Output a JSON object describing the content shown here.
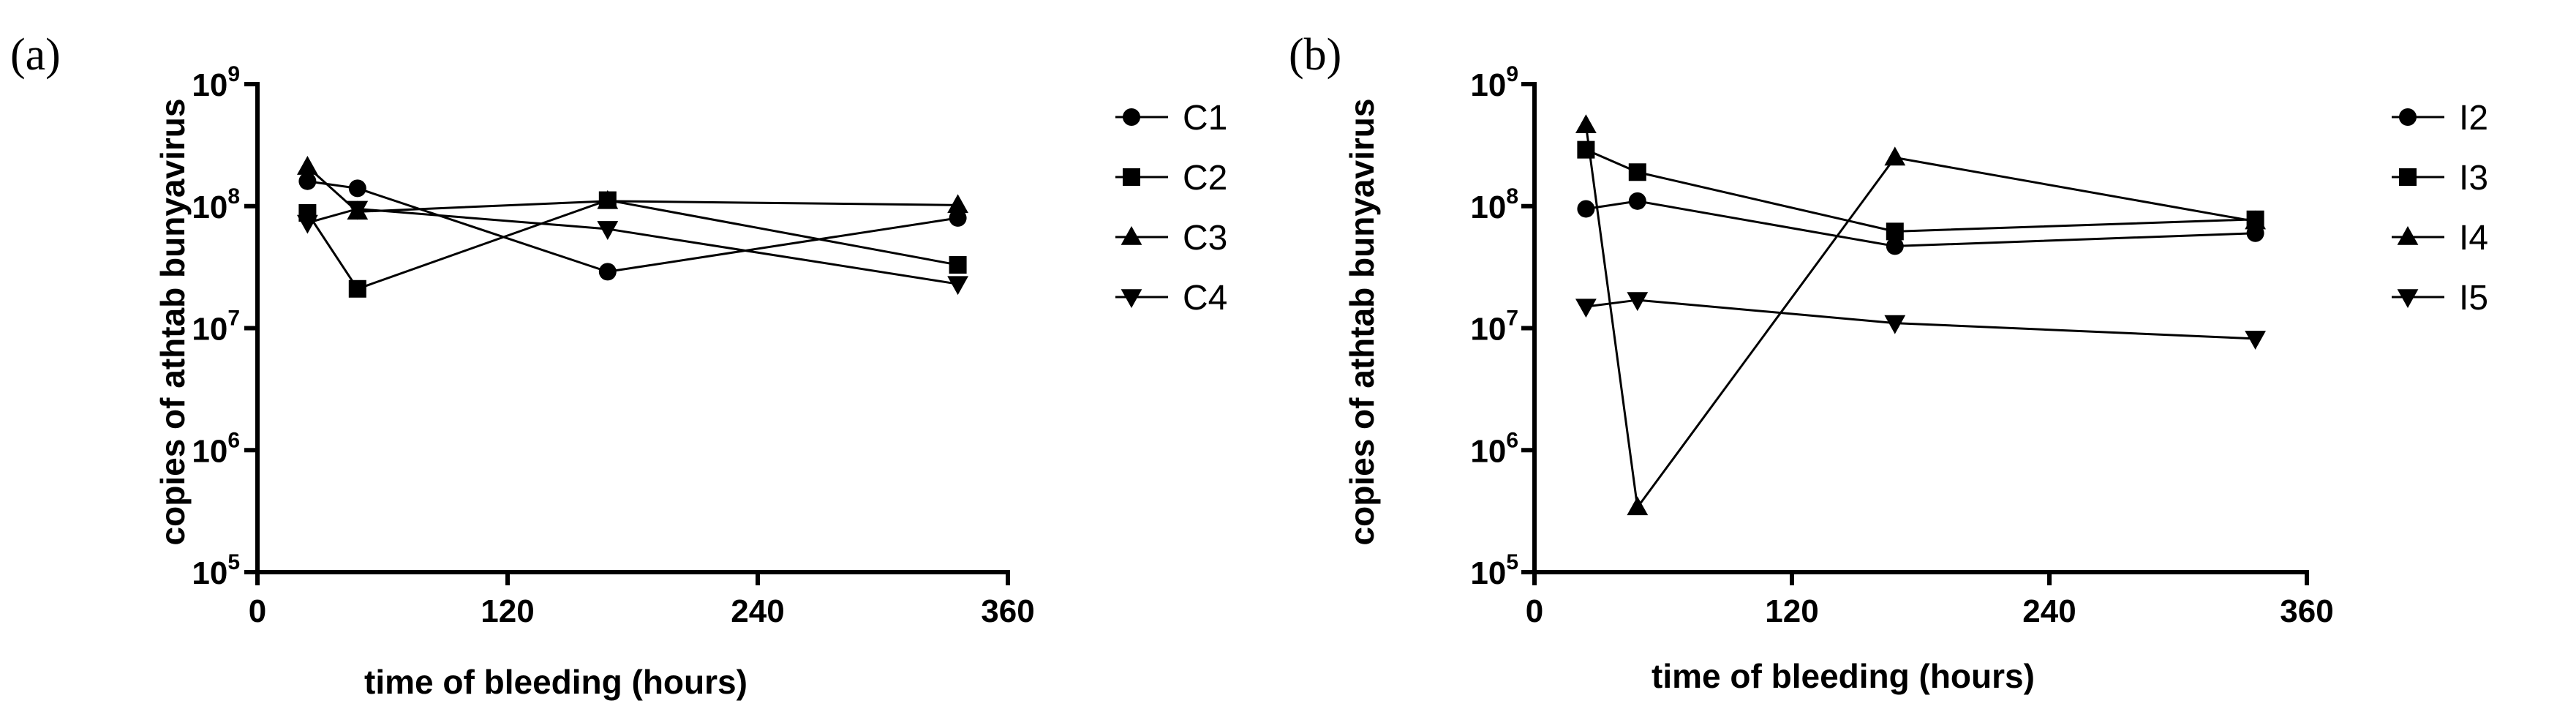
{
  "chart_data": [
    {
      "type": "line",
      "panel_label": "(a)",
      "xlabel": "time of bleeding (hours)",
      "ylabel": "copies of athtab bunyavirus",
      "xlim": [
        0,
        360
      ],
      "xticks": [
        "0",
        "120",
        "240",
        "360"
      ],
      "ylim_log10": [
        5,
        9
      ],
      "yticks": [
        {
          "base": "10",
          "exp": "5"
        },
        {
          "base": "10",
          "exp": "6"
        },
        {
          "base": "10",
          "exp": "7"
        },
        {
          "base": "10",
          "exp": "8"
        },
        {
          "base": "10",
          "exp": "9"
        }
      ],
      "yscale": "log",
      "legend_position": "right",
      "series": [
        {
          "name": "C1",
          "marker": "circle",
          "x": [
            24,
            48,
            168,
            336
          ],
          "y": [
            160000000.0,
            140000000.0,
            29000000.0,
            80000000.0
          ]
        },
        {
          "name": "C2",
          "marker": "square",
          "x": [
            24,
            48,
            168,
            336
          ],
          "y": [
            88000000.0,
            21000000.0,
            112000000.0,
            33000000.0
          ]
        },
        {
          "name": "C3",
          "marker": "triangle-up",
          "x": [
            24,
            48,
            168,
            336
          ],
          "y": [
            210000000.0,
            90000000.0,
            110000000.0,
            102000000.0
          ]
        },
        {
          "name": "C4",
          "marker": "triangle-down",
          "x": [
            24,
            48,
            168,
            336
          ],
          "y": [
            73000000.0,
            95000000.0,
            65000000.0,
            23000000.0
          ]
        }
      ]
    },
    {
      "type": "line",
      "panel_label": "(b)",
      "xlabel": "time of bleeding (hours)",
      "ylabel": "copies of athtab bunyavirus",
      "xlim": [
        0,
        360
      ],
      "xticks": [
        "0",
        "120",
        "240",
        "360"
      ],
      "ylim_log10": [
        5,
        9
      ],
      "yticks": [
        {
          "base": "10",
          "exp": "5"
        },
        {
          "base": "10",
          "exp": "6"
        },
        {
          "base": "10",
          "exp": "7"
        },
        {
          "base": "10",
          "exp": "8"
        },
        {
          "base": "10",
          "exp": "9"
        }
      ],
      "yscale": "log",
      "legend_position": "right",
      "series": [
        {
          "name": "I2",
          "marker": "circle",
          "x": [
            24,
            48,
            168,
            336
          ],
          "y": [
            95000000.0,
            110000000.0,
            47000000.0,
            60000000.0
          ]
        },
        {
          "name": "I3",
          "marker": "square",
          "x": [
            24,
            48,
            168,
            336
          ],
          "y": [
            290000000.0,
            190000000.0,
            62000000.0,
            78000000.0
          ]
        },
        {
          "name": "I4",
          "marker": "triangle-up",
          "x": [
            24,
            48,
            168,
            336
          ],
          "y": [
            460000000.0,
            340000.0,
            250000000.0,
            75000000.0
          ]
        },
        {
          "name": "I5",
          "marker": "triangle-down",
          "x": [
            24,
            48,
            168,
            336
          ],
          "y": [
            15000000.0,
            17000000.0,
            11000000.0,
            8200000.0
          ]
        }
      ]
    }
  ]
}
